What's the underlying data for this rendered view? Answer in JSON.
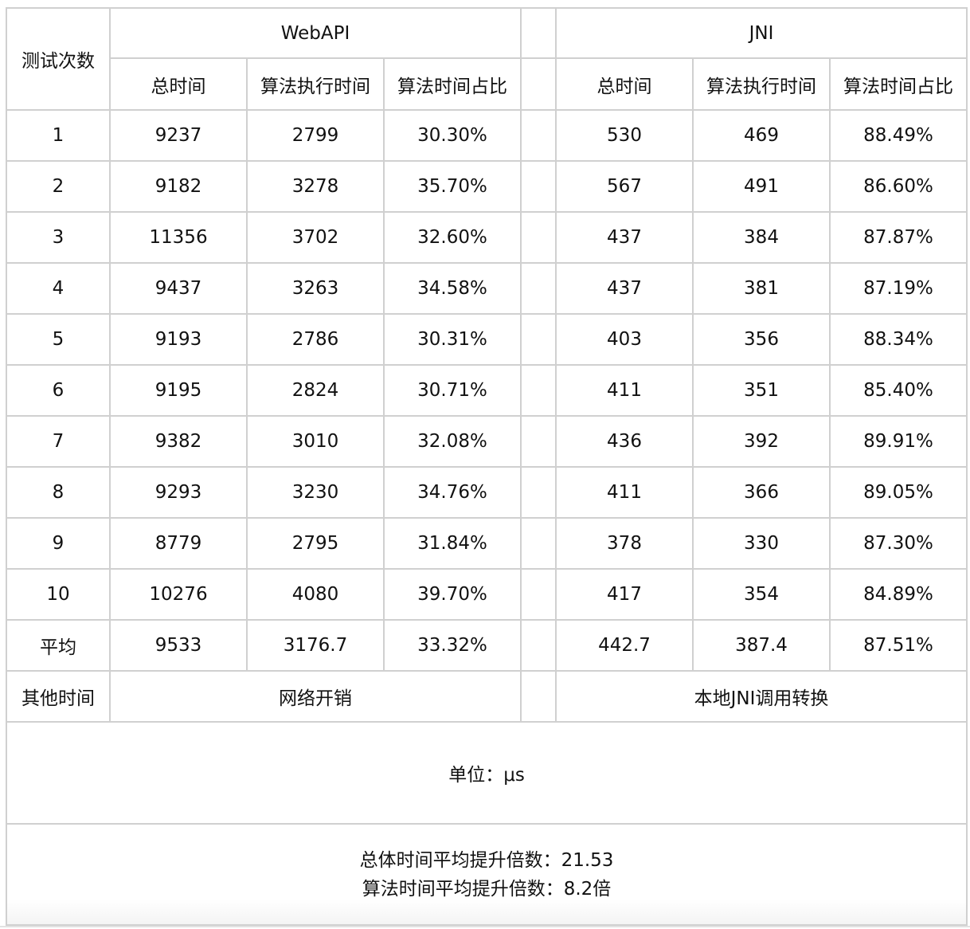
{
  "header": {
    "row_label": "测试次数",
    "groups": [
      "WebAPI",
      "JNI"
    ],
    "columns": [
      "总时间",
      "算法执行时间",
      "算法时间占比"
    ]
  },
  "rows": [
    [
      "1",
      "9237",
      "2799",
      "30.30%",
      "530",
      "469",
      "88.49%"
    ],
    [
      "2",
      "9182",
      "3278",
      "35.70%",
      "567",
      "491",
      "86.60%"
    ],
    [
      "3",
      "11356",
      "3702",
      "32.60%",
      "437",
      "384",
      "87.87%"
    ],
    [
      "4",
      "9437",
      "3263",
      "34.58%",
      "437",
      "381",
      "87.19%"
    ],
    [
      "5",
      "9193",
      "2786",
      "30.31%",
      "403",
      "356",
      "88.34%"
    ],
    [
      "6",
      "9195",
      "2824",
      "30.71%",
      "411",
      "351",
      "85.40%"
    ],
    [
      "7",
      "9382",
      "3010",
      "32.08%",
      "436",
      "392",
      "89.91%"
    ],
    [
      "8",
      "9293",
      "3230",
      "34.76%",
      "411",
      "366",
      "89.05%"
    ],
    [
      "9",
      "8779",
      "2795",
      "31.84%",
      "378",
      "330",
      "87.30%"
    ],
    [
      "10",
      "10276",
      "4080",
      "39.70%",
      "417",
      "354",
      "84.89%"
    ],
    [
      "平均",
      "9533",
      "3176.7",
      "33.32%",
      "442.7",
      "387.4",
      "87.51%"
    ]
  ],
  "other_time": {
    "label": "其他时间",
    "webapi": "网络开销",
    "jni": "本地JNI调用转换"
  },
  "unit": "单位：μs",
  "summary": {
    "line1": "总体时间平均提升倍数：21.53",
    "line2": "算法时间平均提升倍数：8.2倍"
  }
}
